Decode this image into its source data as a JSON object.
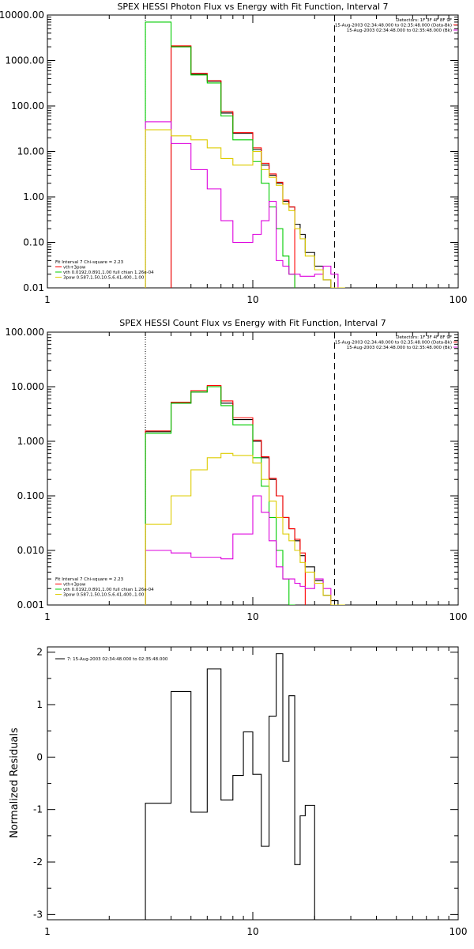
{
  "chart_data": [
    {
      "type": "line",
      "title": "SPEX HESSI Photon Flux vs Energy with Fit Function, Interval 7",
      "xscale": "log",
      "yscale": "log",
      "xlim": [
        1,
        100
      ],
      "ylim": [
        0.01,
        10000
      ],
      "xticklabels": [
        "1",
        "10",
        "100"
      ],
      "yticklabels": [
        "0.01",
        "0.10",
        "1.00",
        "10.00",
        "100.00",
        "1000.00",
        "10000.00"
      ],
      "header_lines": [
        "Detectors: 1F 3F 4F 8F 9F",
        "15-Aug-2003 02:34:48.000 to 02:35:48.000 (Data-Bk)",
        "15-Aug-2003 02:34:48.000 to 02:35:48.000 (Bk)"
      ],
      "legend_lines": [
        "Fit Interval 7   Chi-square = 2.23",
        "vth+3pow",
        "vth 0.0192,0.891,1.00  full chian 1.26e-04",
        "3pow 0.587,1.50,10.5,6.41,400.,1.00"
      ],
      "vlines": [
        {
          "x": 3,
          "style": "dotted",
          "color": "#000000"
        },
        {
          "x": 25,
          "style": "dashed",
          "color": "#000000"
        }
      ],
      "series": [
        {
          "color": "#000000",
          "x": [
            3,
            3.5,
            4,
            4.5,
            5,
            5.5,
            6,
            6.5,
            7,
            7.5,
            8,
            9,
            10,
            11,
            12,
            13,
            14,
            15,
            16,
            17,
            18,
            20,
            22,
            24,
            26,
            28
          ],
          "y": [
            null,
            null,
            2000,
            2000,
            500,
            500,
            350,
            350,
            70,
            70,
            25,
            25,
            11,
            5,
            3,
            2,
            0.8,
            0.6,
            0.25,
            0.15,
            0.06,
            0.03,
            0.015,
            0.01,
            null,
            null
          ]
        },
        {
          "color": "#ff0000",
          "x": [
            3,
            3.5,
            4,
            4.5,
            5,
            5.5,
            6,
            6.5,
            7,
            7.5,
            8,
            9,
            10,
            11,
            12,
            13,
            14,
            15,
            16,
            17,
            18,
            20,
            22,
            24,
            26,
            28
          ],
          "y": [
            null,
            null,
            2100,
            2100,
            520,
            520,
            360,
            360,
            75,
            75,
            26,
            26,
            12,
            5.5,
            3.2,
            2.1,
            0.85,
            0.6,
            null,
            null,
            null,
            null,
            null,
            null,
            null,
            null
          ]
        },
        {
          "color": "#00cc00",
          "x": [
            3,
            3.5,
            4,
            4.5,
            5,
            5.5,
            6,
            6.5,
            7,
            7.5,
            8,
            9,
            10,
            11,
            12,
            13,
            14,
            15,
            16,
            17,
            18,
            20,
            22,
            24,
            26,
            28
          ],
          "y": [
            7000,
            7000,
            2000,
            2000,
            480,
            480,
            320,
            320,
            60,
            60,
            18,
            18,
            6,
            2,
            0.6,
            0.2,
            0.05,
            0.02,
            null,
            null,
            null,
            null,
            null,
            null,
            null,
            null
          ]
        },
        {
          "color": "#dd00dd",
          "x": [
            3,
            3.5,
            4,
            4.5,
            5,
            5.5,
            6,
            6.5,
            7,
            7.5,
            8,
            9,
            10,
            11,
            12,
            13,
            14,
            15,
            16,
            17,
            18,
            20,
            22,
            24,
            26,
            28
          ],
          "y": [
            45,
            45,
            15,
            15,
            4,
            4,
            1.5,
            1.5,
            0.3,
            0.3,
            0.1,
            0.1,
            0.15,
            0.3,
            0.8,
            0.04,
            0.03,
            0.02,
            0.02,
            0.018,
            0.018,
            0.02,
            0.03,
            0.02,
            null,
            null
          ]
        },
        {
          "color": "#ddcc00",
          "x": [
            3,
            3.5,
            4,
            4.5,
            5,
            5.5,
            6,
            6.5,
            7,
            7.5,
            8,
            9,
            10,
            11,
            12,
            13,
            14,
            15,
            16,
            17,
            18,
            20,
            22,
            24,
            26,
            28
          ],
          "y": [
            30,
            30,
            22,
            22,
            18,
            18,
            12,
            12,
            7,
            7,
            5,
            5,
            10,
            4,
            2.7,
            1.8,
            0.7,
            0.5,
            0.2,
            0.12,
            0.05,
            0.025,
            0.015,
            0.01,
            0.01,
            null
          ]
        }
      ]
    },
    {
      "type": "line",
      "title": "SPEX HESSI Count Flux vs Energy with Fit Function, Interval 7",
      "xscale": "log",
      "yscale": "log",
      "xlim": [
        1,
        100
      ],
      "ylim": [
        0.001,
        100
      ],
      "xticklabels": [
        "1",
        "10",
        "100"
      ],
      "yticklabels": [
        "0.001",
        "0.010",
        "0.100",
        "1.000",
        "10.000",
        "100.000"
      ],
      "header_lines": [
        "Detectors: 1F 3F 4F 8F 9F",
        "15-Aug-2003 02:34:48.000 to 02:35:48.000 (Data-Bk)",
        "15-Aug-2003 02:34:48.000 to 02:35:48.000 (Bk)"
      ],
      "legend_lines": [
        "Fit Interval 7   Chi-square = 2.23",
        "vth+3pow",
        "vth 0.0192,0.891,1.00  full chian 1.26e-04",
        "3pow 0.587,1.50,10.5,6.41,400.,1.00"
      ],
      "vlines": [
        {
          "x": 3,
          "style": "dotted",
          "color": "#000000"
        },
        {
          "x": 25,
          "style": "dashed",
          "color": "#000000"
        }
      ],
      "series": [
        {
          "color": "#000000",
          "x": [
            3,
            3.5,
            4,
            4.5,
            5,
            5.5,
            6,
            6.5,
            7,
            7.5,
            8,
            9,
            10,
            11,
            12,
            13,
            14,
            15,
            16,
            17,
            18,
            20,
            22,
            24,
            26,
            28
          ],
          "y": [
            1.5,
            1.5,
            5,
            5,
            8,
            8,
            10,
            10,
            5,
            5,
            2.5,
            2.5,
            1,
            0.5,
            0.2,
            0.1,
            0.04,
            0.025,
            0.015,
            0.008,
            0.005,
            0.0028,
            0.0015,
            0.0012,
            null,
            null
          ]
        },
        {
          "color": "#ff0000",
          "x": [
            3,
            3.5,
            4,
            4.5,
            5,
            5.5,
            6,
            6.5,
            7,
            7.5,
            8,
            9,
            10,
            11,
            12,
            13,
            14,
            15,
            16,
            17,
            18,
            20,
            22,
            24,
            26,
            28
          ],
          "y": [
            1.55,
            1.55,
            5.2,
            5.2,
            8.5,
            8.5,
            10.5,
            10.5,
            5.5,
            5.5,
            2.7,
            2.7,
            1.05,
            0.52,
            0.21,
            0.1,
            0.04,
            0.025,
            0.016,
            0.009,
            null,
            null,
            null,
            null,
            null,
            null
          ]
        },
        {
          "color": "#00cc00",
          "x": [
            3,
            3.5,
            4,
            4.5,
            5,
            5.5,
            6,
            6.5,
            7,
            7.5,
            8,
            9,
            10,
            11,
            12,
            13,
            14,
            15,
            16,
            17,
            18,
            20,
            22,
            24,
            26,
            28
          ],
          "y": [
            1.4,
            1.4,
            5,
            5,
            8,
            8,
            10,
            10,
            4.5,
            4.5,
            2,
            2,
            0.5,
            0.15,
            0.04,
            0.01,
            0.003,
            0.001,
            null,
            null,
            null,
            null,
            null,
            null,
            null,
            null
          ]
        },
        {
          "color": "#dd00dd",
          "x": [
            3,
            3.5,
            4,
            4.5,
            5,
            5.5,
            6,
            6.5,
            7,
            7.5,
            8,
            9,
            10,
            11,
            12,
            13,
            14,
            15,
            16,
            17,
            18,
            20,
            22,
            24,
            26,
            28
          ],
          "y": [
            0.01,
            0.01,
            0.009,
            0.009,
            0.0075,
            0.0075,
            0.0075,
            0.0075,
            0.007,
            0.007,
            0.02,
            0.02,
            0.1,
            0.05,
            0.015,
            0.005,
            0.003,
            0.003,
            0.0025,
            0.0022,
            0.002,
            0.003,
            0.002,
            null,
            null,
            null
          ]
        },
        {
          "color": "#ddcc00",
          "x": [
            3,
            3.5,
            4,
            4.5,
            5,
            5.5,
            6,
            6.5,
            7,
            7.5,
            8,
            9,
            10,
            11,
            12,
            13,
            14,
            15,
            16,
            17,
            18,
            20,
            22,
            24,
            26,
            28
          ],
          "y": [
            0.03,
            0.03,
            0.1,
            0.1,
            0.3,
            0.3,
            0.5,
            0.5,
            0.6,
            0.6,
            0.55,
            0.55,
            0.4,
            0.2,
            0.08,
            0.04,
            0.02,
            0.015,
            0.01,
            0.006,
            0.004,
            0.0025,
            0.0015,
            0.001,
            0.001,
            null
          ]
        }
      ]
    },
    {
      "type": "line",
      "title": "",
      "xscale": "log",
      "yscale": "linear",
      "xlim": [
        1,
        100
      ],
      "ylim": [
        -3.1,
        2.1
      ],
      "xticklabels": [
        "1",
        "10",
        "100"
      ],
      "yticklabels": [
        "-3",
        "-2",
        "-1",
        "0",
        "1",
        "2"
      ],
      "ylabel": "Normalized Residuals",
      "legend_lines": [
        "7: 15-Aug-2003 02:34:48.000 to 02:35:48.000"
      ],
      "series": [
        {
          "color": "#000000",
          "x": [
            3,
            3.5,
            4,
            4.5,
            5,
            5.5,
            6,
            6.5,
            7,
            7.5,
            8,
            9,
            10,
            11,
            12,
            13,
            14,
            15,
            16,
            17,
            18,
            20,
            22,
            24,
            26,
            28
          ],
          "y": [
            -0.88,
            -0.88,
            1.25,
            1.25,
            -1.05,
            -1.05,
            1.68,
            1.68,
            -0.82,
            -0.82,
            -0.35,
            0.48,
            -0.33,
            -1.7,
            0.78,
            1.97,
            -0.08,
            1.17,
            -2.05,
            -1.12,
            -0.92,
            null,
            null,
            null,
            null,
            null
          ]
        }
      ]
    }
  ]
}
